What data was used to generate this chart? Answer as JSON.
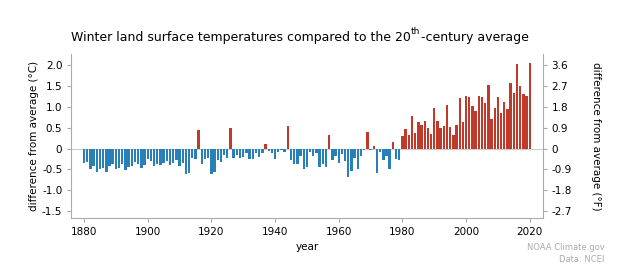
{
  "title_part1": "Winter land surface temperatures compared to the 20",
  "title_sup": "th",
  "title_part2": "-century average",
  "ylabel_left": "difference from average (°C)",
  "ylabel_right": "difference from average (°F)",
  "xlabel": "year",
  "source_line1": "NOAA Climate.gov",
  "source_line2": "Data: NCEI",
  "ylim_c": [
    -1.65,
    2.25
  ],
  "yticks_c": [
    -1.5,
    -1.0,
    -0.5,
    0.0,
    0.5,
    1.0,
    1.5,
    2.0
  ],
  "ytick_labels_c": [
    "-1.5",
    "-1.0",
    "-0.5",
    "0",
    "0.5",
    "1.0",
    "1.5",
    "2.0"
  ],
  "yticks_f": [
    -2.7,
    -1.8,
    -0.9,
    0.0,
    0.9,
    1.8,
    2.7,
    3.6
  ],
  "ytick_labels_f": [
    "-2.7",
    "-1.8",
    "-0.9",
    "0",
    "0.9",
    "1.8",
    "2.7",
    "3.6"
  ],
  "color_pos": "#c0392b",
  "color_neg": "#2980b9",
  "bg_color": "#ffffff",
  "zeroline_color": "#cccccc",
  "spine_color": "#aaaaaa",
  "source_color": "#aaaaaa",
  "xticks": [
    1880,
    1900,
    1920,
    1940,
    1960,
    1980,
    2000,
    2020
  ],
  "xlim": [
    1876,
    2024
  ],
  "bar_width": 0.75,
  "title_fontsize": 9,
  "axis_fontsize": 7.5,
  "source_fontsize": 6,
  "years": [
    1880,
    1881,
    1882,
    1883,
    1884,
    1885,
    1886,
    1887,
    1888,
    1889,
    1890,
    1891,
    1892,
    1893,
    1894,
    1895,
    1896,
    1897,
    1898,
    1899,
    1900,
    1901,
    1902,
    1903,
    1904,
    1905,
    1906,
    1907,
    1908,
    1909,
    1910,
    1911,
    1912,
    1913,
    1914,
    1915,
    1916,
    1917,
    1918,
    1919,
    1920,
    1921,
    1922,
    1923,
    1924,
    1925,
    1926,
    1927,
    1928,
    1929,
    1930,
    1931,
    1932,
    1933,
    1934,
    1935,
    1936,
    1937,
    1938,
    1939,
    1940,
    1941,
    1942,
    1943,
    1944,
    1945,
    1946,
    1947,
    1948,
    1949,
    1950,
    1951,
    1952,
    1953,
    1954,
    1955,
    1956,
    1957,
    1958,
    1959,
    1960,
    1961,
    1962,
    1963,
    1964,
    1965,
    1966,
    1967,
    1968,
    1969,
    1970,
    1971,
    1972,
    1973,
    1974,
    1975,
    1976,
    1977,
    1978,
    1979,
    1980,
    1981,
    1982,
    1983,
    1984,
    1985,
    1986,
    1987,
    1988,
    1989,
    1990,
    1991,
    1992,
    1993,
    1994,
    1995,
    1996,
    1997,
    1998,
    1999,
    2000,
    2001,
    2002,
    2003,
    2004,
    2005,
    2006,
    2007,
    2008,
    2009,
    2010,
    2011,
    2012,
    2013,
    2014,
    2015,
    2016,
    2017,
    2018,
    2019,
    2020
  ],
  "anomalies": [
    -0.35,
    -0.32,
    -0.48,
    -0.42,
    -0.55,
    -0.5,
    -0.46,
    -0.56,
    -0.42,
    -0.36,
    -0.5,
    -0.46,
    -0.38,
    -0.52,
    -0.44,
    -0.42,
    -0.32,
    -0.36,
    -0.46,
    -0.4,
    -0.26,
    -0.3,
    -0.42,
    -0.36,
    -0.4,
    -0.34,
    -0.3,
    -0.4,
    -0.34,
    -0.28,
    -0.42,
    -0.34,
    -0.6,
    -0.58,
    -0.22,
    -0.26,
    0.44,
    -0.36,
    -0.26,
    -0.22,
    -0.62,
    -0.56,
    -0.28,
    -0.32,
    -0.16,
    -0.22,
    0.48,
    -0.22,
    -0.16,
    -0.22,
    -0.2,
    -0.1,
    -0.24,
    -0.26,
    -0.1,
    -0.2,
    -0.1,
    0.1,
    -0.05,
    -0.1,
    -0.24,
    -0.08,
    -0.04,
    -0.08,
    0.55,
    -0.28,
    -0.38,
    -0.38,
    -0.18,
    -0.48,
    -0.44,
    -0.08,
    -0.18,
    -0.1,
    -0.44,
    -0.38,
    -0.44,
    0.32,
    -0.28,
    -0.18,
    -0.34,
    -0.14,
    -0.3,
    -0.68,
    -0.54,
    -0.22,
    -0.48,
    -0.18,
    -0.04,
    0.4,
    -0.04,
    0.06,
    -0.58,
    -0.08,
    -0.28,
    -0.18,
    -0.48,
    0.16,
    -0.24,
    -0.28,
    0.3,
    0.46,
    0.32,
    0.78,
    0.36,
    0.64,
    0.56,
    0.66,
    0.5,
    0.34,
    0.96,
    0.66,
    0.5,
    0.54,
    1.04,
    0.52,
    0.32,
    0.56,
    1.22,
    0.64,
    1.26,
    1.24,
    1.02,
    0.9,
    1.26,
    1.24,
    1.1,
    1.52,
    0.7,
    0.96,
    1.24,
    0.86,
    1.12,
    0.94,
    1.56,
    1.32,
    2.02,
    1.5,
    1.3,
    1.26,
    2.04
  ]
}
